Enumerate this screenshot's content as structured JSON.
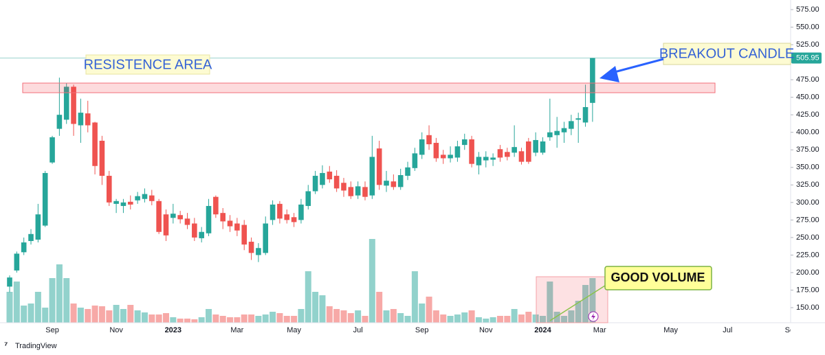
{
  "chart_data": {
    "type": "candlestick",
    "categories": [
      null,
      null,
      null,
      null,
      null,
      null,
      "Sep",
      null,
      null,
      null,
      null,
      null,
      null,
      null,
      null,
      "Nov",
      null,
      null,
      null,
      null,
      null,
      null,
      null,
      "2023",
      null,
      null,
      null,
      null,
      null,
      null,
      null,
      null,
      "Mar",
      null,
      null,
      null,
      null,
      null,
      null,
      null,
      "May",
      null,
      null,
      null,
      null,
      null,
      null,
      null,
      null,
      "Jul",
      null,
      null,
      null,
      null,
      null,
      null,
      null,
      null,
      "Sep",
      null,
      null,
      null,
      null,
      null,
      null,
      null,
      null,
      "Nov",
      null,
      null,
      null,
      null,
      null,
      null,
      null,
      "2024",
      null,
      null,
      null,
      null,
      null,
      null,
      null,
      "Mar",
      null,
      null,
      null,
      null,
      null,
      null,
      null,
      null,
      null,
      "May",
      null,
      null,
      null,
      null,
      null,
      null,
      null,
      "Jul",
      null,
      null,
      null,
      null,
      null,
      null,
      null,
      null,
      "Sep"
    ],
    "open": [
      180,
      203,
      229,
      245,
      247,
      267,
      357,
      405,
      418,
      465,
      410,
      427,
      414,
      388,
      338,
      298,
      295,
      301,
      303,
      305,
      310,
      302,
      283,
      278,
      282,
      277,
      270,
      249,
      256,
      308,
      285,
      274,
      270,
      268,
      244,
      225,
      228,
      275,
      298,
      283,
      279,
      275,
      295,
      316,
      325,
      344,
      338,
      328,
      322,
      310,
      322,
      310,
      377,
      324,
      330,
      322,
      338,
      349,
      368,
      396,
      385,
      368,
      363,
      364,
      382,
      390,
      353,
      360,
      361,
      376,
      372,
      371,
      373,
      387,
      371,
      371,
      393,
      396,
      400,
      405,
      418,
      414,
      442,
      null,
      null,
      null,
      null,
      null,
      null,
      null,
      null,
      null,
      null,
      null,
      null,
      null,
      null,
      null,
      null,
      null,
      null,
      null,
      null,
      null,
      null,
      null,
      null,
      null,
      null,
      null,
      null
    ],
    "high": [
      196,
      230,
      250,
      262,
      298,
      345,
      395,
      478,
      470,
      468,
      448,
      445,
      415,
      395,
      345,
      305,
      305,
      310,
      315,
      320,
      318,
      305,
      290,
      298,
      288,
      285,
      278,
      265,
      305,
      310,
      292,
      282,
      278,
      275,
      250,
      242,
      280,
      303,
      302,
      290,
      285,
      305,
      325,
      345,
      353,
      352,
      346,
      335,
      330,
      330,
      330,
      395,
      388,
      345,
      340,
      348,
      358,
      378,
      400,
      410,
      392,
      375,
      380,
      388,
      398,
      395,
      372,
      373,
      370,
      382,
      378,
      410,
      378,
      392,
      400,
      393,
      448,
      422,
      415,
      425,
      428,
      468,
      506,
      null,
      null,
      null,
      null,
      null,
      null,
      null,
      null,
      null,
      null,
      null,
      null,
      null,
      null,
      null,
      null,
      null,
      null,
      null,
      null,
      null,
      null,
      null,
      null,
      null,
      null,
      null,
      null
    ],
    "low": [
      172,
      200,
      225,
      240,
      243,
      265,
      355,
      395,
      412,
      395,
      385,
      400,
      340,
      325,
      295,
      285,
      285,
      290,
      298,
      300,
      296,
      255,
      245,
      270,
      270,
      262,
      245,
      243,
      252,
      278,
      262,
      258,
      252,
      232,
      218,
      215,
      225,
      268,
      270,
      270,
      265,
      270,
      290,
      312,
      320,
      328,
      315,
      308,
      305,
      305,
      303,
      305,
      318,
      315,
      318,
      318,
      332,
      345,
      362,
      375,
      358,
      355,
      357,
      358,
      375,
      350,
      340,
      350,
      352,
      358,
      360,
      365,
      354,
      355,
      366,
      368,
      388,
      378,
      385,
      396,
      385,
      408,
      415,
      null,
      null,
      null,
      null,
      null,
      null,
      null,
      null,
      null,
      null,
      null,
      null,
      null,
      null,
      null,
      null,
      null,
      null,
      null,
      null,
      null,
      null,
      null,
      null,
      null,
      null,
      null,
      null
    ],
    "close": [
      193,
      227,
      243,
      255,
      283,
      342,
      393,
      425,
      465,
      412,
      428,
      410,
      352,
      338,
      300,
      302,
      300,
      297,
      309,
      312,
      302,
      258,
      253,
      284,
      276,
      268,
      250,
      258,
      295,
      283,
      273,
      266,
      260,
      240,
      228,
      235,
      270,
      297,
      277,
      275,
      272,
      297,
      316,
      338,
      342,
      333,
      320,
      317,
      309,
      323,
      308,
      365,
      325,
      331,
      322,
      339,
      350,
      370,
      390,
      383,
      363,
      363,
      368,
      380,
      390,
      355,
      365,
      365,
      364,
      364,
      365,
      379,
      358,
      358,
      389,
      387,
      400,
      402,
      406,
      416,
      420,
      436,
      505.95,
      null,
      null,
      null,
      null,
      null,
      null,
      null,
      null,
      null,
      null,
      null,
      null,
      null,
      null,
      null,
      null,
      null,
      null,
      null,
      null,
      null,
      null,
      null,
      null,
      null,
      null,
      null,
      null
    ],
    "volume": [
      45,
      60,
      25,
      28,
      45,
      22,
      65,
      85,
      65,
      28,
      22,
      20,
      25,
      24,
      18,
      26,
      20,
      26,
      18,
      15,
      12,
      12,
      14,
      8,
      6,
      6,
      5,
      8,
      20,
      12,
      10,
      8,
      8,
      12,
      12,
      10,
      12,
      16,
      14,
      10,
      10,
      20,
      75,
      45,
      40,
      24,
      20,
      18,
      14,
      18,
      10,
      122,
      45,
      18,
      20,
      14,
      10,
      75,
      28,
      38,
      18,
      12,
      10,
      12,
      15,
      18,
      8,
      6,
      8,
      10,
      10,
      20,
      12,
      16,
      12,
      10,
      60,
      16,
      10,
      18,
      32,
      55,
      65,
      null,
      null,
      null,
      null,
      null,
      null,
      null,
      null,
      null,
      null,
      null,
      null,
      null,
      null,
      null,
      null,
      null,
      null,
      null,
      null,
      null,
      null,
      null,
      null,
      null,
      null,
      null,
      null
    ],
    "up_color": "#26a69a",
    "down_color": "#ef5350",
    "ylim": [
      128.5,
      588.7
    ],
    "volume_lim": [
      0,
      470
    ],
    "yticks": [
      {
        "value": 150,
        "label": "150.00"
      },
      {
        "value": 175,
        "label": "175.00"
      },
      {
        "value": 200,
        "label": "200.00"
      },
      {
        "value": 225,
        "label": "225.00"
      },
      {
        "value": 250,
        "label": "250.00"
      },
      {
        "value": 275,
        "label": "275.00"
      },
      {
        "value": 300,
        "label": "300.00"
      },
      {
        "value": 325,
        "label": "325.00"
      },
      {
        "value": 350,
        "label": "350.00"
      },
      {
        "value": 375,
        "label": "375.00"
      },
      {
        "value": 400,
        "label": "400.00"
      },
      {
        "value": 425,
        "label": "425.00"
      },
      {
        "value": 450,
        "label": "450.00"
      },
      {
        "value": 475,
        "label": "475.00"
      },
      {
        "value": 525,
        "label": "525.00"
      },
      {
        "value": 550,
        "label": "550.00"
      },
      {
        "value": 575,
        "label": "575.00"
      }
    ],
    "grid": false,
    "annotations": [
      "RESISTENCE AREA",
      "BREAKOUT CANDLE",
      "GOOD VOLUME"
    ],
    "source": "TradingView"
  }
}
